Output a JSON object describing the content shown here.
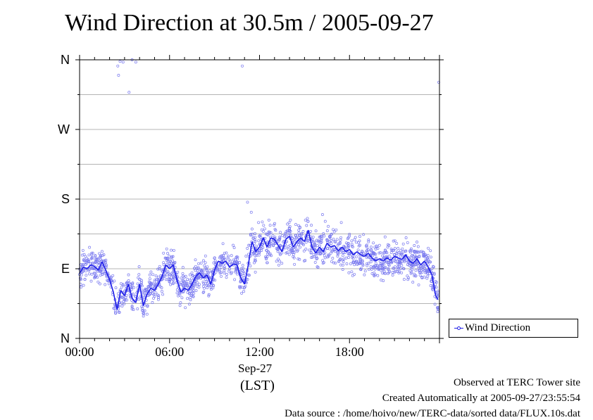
{
  "title": "Wind Direction at 30.5m / 2005-09-27",
  "x_date_label": "Sep-27",
  "x_unit_label": "(LST)",
  "footer": {
    "observed": "Observed at TERC Tower site",
    "created": "Created Automatically at 2005-09-27/23:55:54",
    "source": "Data source : /home/hoivo/new/TERC-data/sorted  data/FLUX.10s.dat"
  },
  "legend": {
    "label": "Wind Direction"
  },
  "colors": {
    "series": "#1d1de8",
    "scatter": "#7a7aef",
    "grid": "#b4b4b4"
  },
  "chart_data": {
    "type": "scatter",
    "title": "Wind Direction at 30.5m / 2005-09-27",
    "xlabel": "(LST)",
    "ylabel": "",
    "x_unit": "hours since 2005-09-27 00:00 LST",
    "xlim": [
      0,
      24
    ],
    "ylim": [
      0,
      360
    ],
    "x_ticks": [
      {
        "value": 0,
        "label": "00:00"
      },
      {
        "value": 6,
        "label": "06:00"
      },
      {
        "value": 12,
        "label": "12:00"
      },
      {
        "value": 18,
        "label": "18:00"
      }
    ],
    "y_ticks": [
      {
        "value": 0,
        "label": "N"
      },
      {
        "value": 90,
        "label": "E"
      },
      {
        "value": 180,
        "label": "S"
      },
      {
        "value": 270,
        "label": "W"
      },
      {
        "value": 360,
        "label": "N"
      }
    ],
    "y_minor_grid": [
      45,
      135,
      225,
      315
    ],
    "grid": true,
    "legend_position": "right",
    "series": [
      {
        "name": "Wind Direction",
        "style": "line with scatter points",
        "points": [
          [
            0.0,
            84
          ],
          [
            0.25,
            92
          ],
          [
            0.5,
            90
          ],
          [
            0.75,
            95
          ],
          [
            1.0,
            93
          ],
          [
            1.25,
            88
          ],
          [
            1.5,
            99
          ],
          [
            1.75,
            88
          ],
          [
            2.0,
            76
          ],
          [
            2.25,
            60
          ],
          [
            2.5,
            37
          ],
          [
            2.75,
            62
          ],
          [
            3.0,
            55
          ],
          [
            3.25,
            70
          ],
          [
            3.5,
            52
          ],
          [
            3.75,
            46
          ],
          [
            4.0,
            70
          ],
          [
            4.25,
            42
          ],
          [
            4.5,
            57
          ],
          [
            4.75,
            65
          ],
          [
            5.0,
            62
          ],
          [
            5.25,
            70
          ],
          [
            5.5,
            80
          ],
          [
            5.75,
            95
          ],
          [
            6.0,
            90
          ],
          [
            6.25,
            95
          ],
          [
            6.5,
            75
          ],
          [
            6.75,
            60
          ],
          [
            7.0,
            65
          ],
          [
            7.25,
            62
          ],
          [
            7.5,
            70
          ],
          [
            7.75,
            80
          ],
          [
            8.0,
            85
          ],
          [
            8.25,
            78
          ],
          [
            8.5,
            82
          ],
          [
            8.75,
            70
          ],
          [
            9.0,
            88
          ],
          [
            9.25,
            100
          ],
          [
            9.5,
            97
          ],
          [
            9.75,
            100
          ],
          [
            10.0,
            92
          ],
          [
            10.25,
            96
          ],
          [
            10.5,
            95
          ],
          [
            10.75,
            78
          ],
          [
            11.0,
            70
          ],
          [
            11.25,
            95
          ],
          [
            11.5,
            125
          ],
          [
            11.75,
            112
          ],
          [
            12.0,
            118
          ],
          [
            12.25,
            130
          ],
          [
            12.5,
            118
          ],
          [
            12.75,
            130
          ],
          [
            13.0,
            128
          ],
          [
            13.25,
            120
          ],
          [
            13.5,
            112
          ],
          [
            13.75,
            128
          ],
          [
            14.0,
            132
          ],
          [
            14.25,
            118
          ],
          [
            14.5,
            125
          ],
          [
            14.75,
            130
          ],
          [
            15.0,
            125
          ],
          [
            15.25,
            140
          ],
          [
            15.5,
            118
          ],
          [
            15.75,
            110
          ],
          [
            16.0,
            118
          ],
          [
            16.25,
            112
          ],
          [
            16.5,
            123
          ],
          [
            16.75,
            118
          ],
          [
            17.0,
            120
          ],
          [
            17.25,
            113
          ],
          [
            17.5,
            118
          ],
          [
            17.75,
            112
          ],
          [
            18.0,
            115
          ],
          [
            18.25,
            108
          ],
          [
            18.5,
            112
          ],
          [
            18.75,
            108
          ],
          [
            19.0,
            106
          ],
          [
            19.25,
            110
          ],
          [
            19.5,
            104
          ],
          [
            19.75,
            100
          ],
          [
            20.0,
            103
          ],
          [
            20.25,
            100
          ],
          [
            20.5,
            104
          ],
          [
            20.75,
            101
          ],
          [
            21.0,
            106
          ],
          [
            21.25,
            104
          ],
          [
            21.5,
            102
          ],
          [
            21.75,
            108
          ],
          [
            22.0,
            100
          ],
          [
            22.25,
            97
          ],
          [
            22.5,
            103
          ],
          [
            22.75,
            95
          ],
          [
            23.0,
            100
          ],
          [
            23.25,
            92
          ],
          [
            23.5,
            82
          ],
          [
            23.75,
            55
          ],
          [
            23.9,
            50
          ]
        ]
      }
    ],
    "outliers": [
      [
        2.55,
        352
      ],
      [
        2.7,
        358
      ],
      [
        2.9,
        357
      ],
      [
        3.5,
        360
      ],
      [
        3.75,
        357
      ],
      [
        2.6,
        340
      ],
      [
        3.3,
        318
      ],
      [
        10.85,
        352
      ],
      [
        11.2,
        176
      ],
      [
        11.45,
        163
      ],
      [
        16.2,
        160
      ],
      [
        23.95,
        331
      ]
    ]
  }
}
